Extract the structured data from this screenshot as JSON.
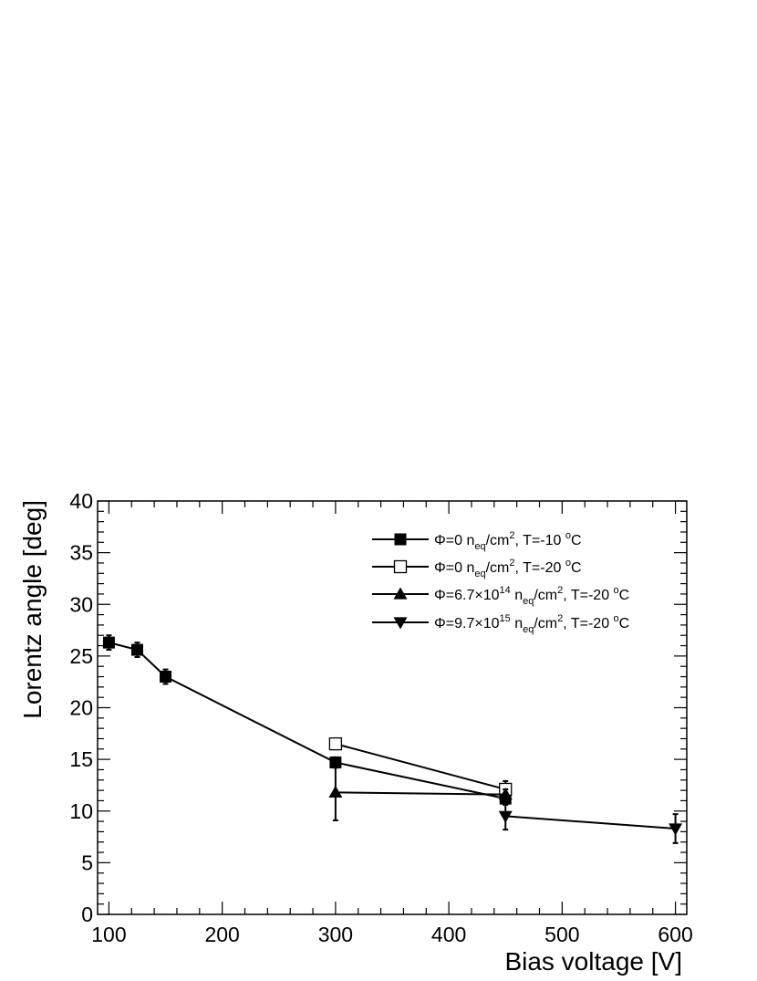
{
  "chart_data": {
    "type": "line",
    "xlabel": "Bias voltage [V]",
    "ylabel": "Lorentz angle [deg]",
    "xlim": [
      90,
      610
    ],
    "ylim": [
      0,
      40
    ],
    "xticks": [
      100,
      200,
      300,
      400,
      500,
      600
    ],
    "xtick_labels": [
      "100",
      "200",
      "300",
      "400",
      "500",
      "600"
    ],
    "yticks": [
      0,
      5,
      10,
      15,
      20,
      25,
      30,
      35,
      40
    ],
    "ytick_labels": [
      "0",
      "5",
      "10",
      "15",
      "20",
      "25",
      "30",
      "35",
      "40"
    ],
    "grid": false,
    "legend_position": "top-right",
    "series": [
      {
        "name": "Φ=0 neq/cm2, T=-10 oC",
        "marker": "filled-square",
        "legend": {
          "pre": "Φ=0 n",
          "sub": "eq",
          "mid": "/cm",
          "sup": "2",
          "post": ", T=-10 ",
          "deg": "o",
          "end": "C"
        },
        "x": [
          100,
          125,
          150,
          300,
          450
        ],
        "y": [
          26.3,
          25.6,
          23.0,
          14.7,
          11.2
        ],
        "yerr": [
          0.7,
          0.7,
          0.7,
          0.5,
          0.6
        ]
      },
      {
        "name": "Φ=0 neq/cm2, T=-20 oC",
        "marker": "open-square",
        "legend": {
          "pre": "Φ=0 n",
          "sub": "eq",
          "mid": "/cm",
          "sup": "2",
          "post": ", T=-20 ",
          "deg": "o",
          "end": "C"
        },
        "x": [
          300,
          450
        ],
        "y": [
          16.5,
          12.1
        ],
        "yerr": [
          0.3,
          0.8
        ]
      },
      {
        "name": "Φ=6.7×10^14 neq/cm2, T=-20 oC",
        "marker": "triangle-up",
        "legend": {
          "pre": "Φ=6.7×10",
          "pow": "14",
          "pre2": " n",
          "sub": "eq",
          "mid": "/cm",
          "sup": "2",
          "post": ", T=-20 ",
          "deg": "o",
          "end": "C"
        },
        "x": [
          300,
          450
        ],
        "y": [
          11.8,
          11.6
        ],
        "yerr": [
          2.7,
          0.5
        ]
      },
      {
        "name": "Φ=9.7×10^15 neq/cm2, T=-20 oC",
        "marker": "triangle-down",
        "legend": {
          "pre": "Φ=9.7×10",
          "pow": "15",
          "pre2": " n",
          "sub": "eq",
          "mid": "/cm",
          "sup": "2",
          "post": ", T=-20 ",
          "deg": "o",
          "end": "C"
        },
        "x": [
          450,
          600
        ],
        "y": [
          9.5,
          8.3
        ],
        "yerr": [
          1.3,
          1.4
        ]
      }
    ]
  }
}
